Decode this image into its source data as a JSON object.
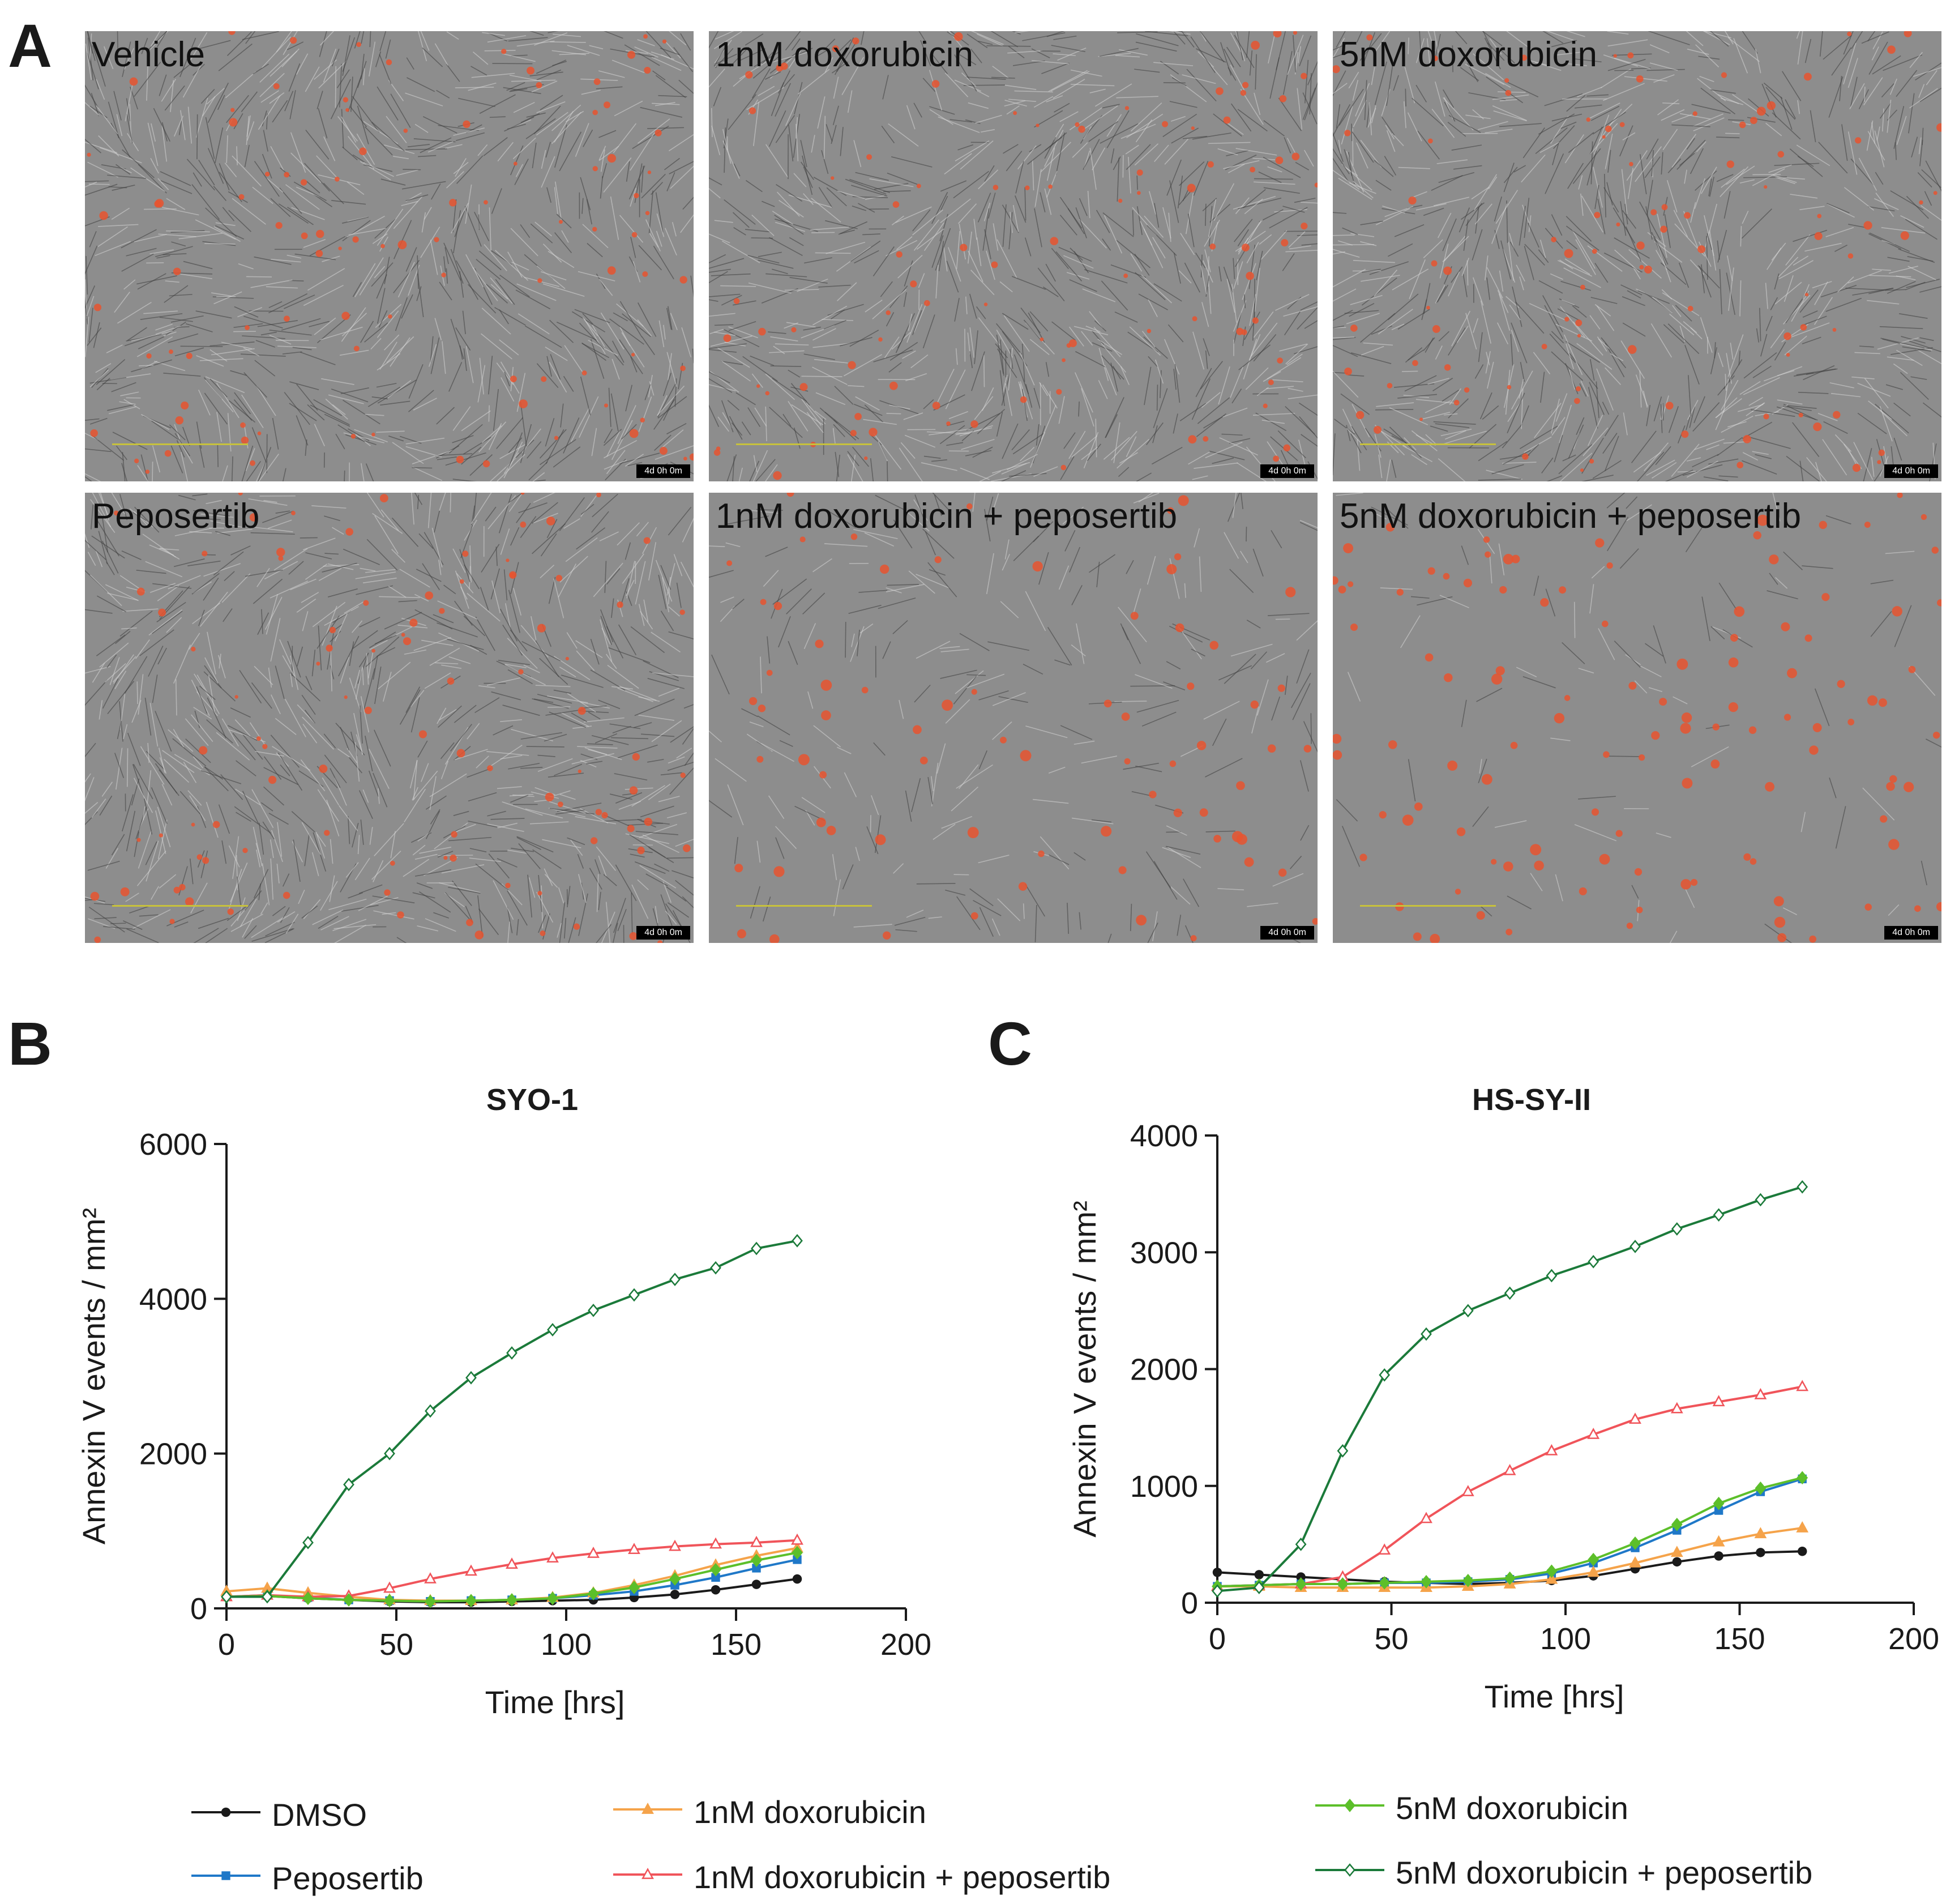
{
  "panel_letters": {
    "a": "A",
    "b": "B",
    "c": "C"
  },
  "micrographs": [
    {
      "label": "Vehicle",
      "timestamp": "4d 0h 0m",
      "density": "dense"
    },
    {
      "label": "1nM doxorubicin",
      "timestamp": "4d 0h 0m",
      "density": "dense"
    },
    {
      "label": "5nM doxorubicin",
      "timestamp": "4d 0h 0m",
      "density": "dense"
    },
    {
      "label": "Peposertib",
      "timestamp": "4d 0h 0m",
      "density": "dense"
    },
    {
      "label": "1nM doxorubicin + peposertib",
      "timestamp": "4d 0h 0m",
      "density": "sparse"
    },
    {
      "label": "5nM doxorubicin + peposertib",
      "timestamp": "4d 0h 0m",
      "density": "very-sparse"
    }
  ],
  "colors": {
    "DMSO": "#1a1a1a",
    "Peposertib": "#1f78c8",
    "1nM doxorubicin": "#f5a34a",
    "1nM doxorubicin + peposertib": "#f0545a",
    "5nM doxorubicin": "#5cbf2a",
    "5nM doxorubicin + peposertib": "#1b7a3a"
  },
  "legend": [
    {
      "name": "DMSO",
      "marker": "circle"
    },
    {
      "name": "Peposertib",
      "marker": "square"
    },
    {
      "name": "1nM doxorubicin",
      "marker": "triangle"
    },
    {
      "name": "1nM doxorubicin + peposertib",
      "marker": "triangle-open"
    },
    {
      "name": "5nM doxorubicin",
      "marker": "diamond"
    },
    {
      "name": "5nM doxorubicin + peposertib",
      "marker": "diamond-open"
    }
  ],
  "chart_data": [
    {
      "type": "line",
      "title": "SYO-1",
      "xlabel": "Time [hrs]",
      "ylabel": "Annexin V events / mm²",
      "xlim": [
        0,
        200
      ],
      "ylim": [
        0,
        6000
      ],
      "xticks": [
        0,
        50,
        100,
        150,
        200
      ],
      "yticks": [
        0,
        2000,
        4000,
        6000
      ],
      "x": [
        0,
        12,
        24,
        36,
        48,
        60,
        72,
        84,
        96,
        108,
        120,
        132,
        144,
        156,
        168
      ],
      "series": [
        {
          "name": "DMSO",
          "values": [
            150,
            160,
            130,
            110,
            90,
            80,
            80,
            90,
            100,
            110,
            140,
            180,
            240,
            310,
            380
          ]
        },
        {
          "name": "Peposertib",
          "values": [
            150,
            170,
            140,
            110,
            100,
            90,
            100,
            110,
            130,
            170,
            220,
            300,
            400,
            520,
            630
          ]
        },
        {
          "name": "1nM doxorubicin",
          "values": [
            220,
            260,
            200,
            150,
            110,
            100,
            100,
            110,
            140,
            200,
            300,
            420,
            560,
            680,
            780
          ]
        },
        {
          "name": "1nM doxorubicin + peposertib",
          "values": [
            150,
            170,
            150,
            160,
            260,
            380,
            480,
            570,
            650,
            710,
            760,
            800,
            830,
            850,
            880
          ]
        },
        {
          "name": "5nM doxorubicin",
          "values": [
            150,
            160,
            130,
            110,
            100,
            90,
            100,
            110,
            130,
            190,
            270,
            380,
            500,
            620,
            720
          ]
        },
        {
          "name": "5nM doxorubicin + peposertib",
          "values": [
            150,
            150,
            850,
            1600,
            2000,
            2550,
            2980,
            3300,
            3600,
            3850,
            4050,
            4250,
            4400,
            4650,
            4750
          ]
        }
      ]
    },
    {
      "type": "line",
      "title": "HS-SY-II",
      "xlabel": "Time [hrs]",
      "ylabel": "Annexin V events / mm²",
      "xlim": [
        0,
        200
      ],
      "ylim": [
        0,
        4000
      ],
      "xticks": [
        0,
        50,
        100,
        150,
        200
      ],
      "yticks": [
        0,
        1000,
        2000,
        3000,
        4000
      ],
      "x": [
        0,
        12,
        24,
        36,
        48,
        60,
        72,
        84,
        96,
        108,
        120,
        132,
        144,
        156,
        168
      ],
      "series": [
        {
          "name": "DMSO",
          "values": [
            260,
            240,
            220,
            200,
            180,
            170,
            160,
            170,
            190,
            230,
            290,
            350,
            400,
            430,
            440
          ]
        },
        {
          "name": "Peposertib",
          "values": [
            140,
            150,
            160,
            160,
            170,
            170,
            180,
            200,
            250,
            340,
            470,
            620,
            790,
            950,
            1060
          ]
        },
        {
          "name": "1nM doxorubicin",
          "values": [
            140,
            140,
            130,
            130,
            130,
            130,
            140,
            160,
            200,
            260,
            340,
            430,
            520,
            590,
            640
          ]
        },
        {
          "name": "1nM doxorubicin + peposertib",
          "values": [
            140,
            150,
            160,
            220,
            450,
            720,
            950,
            1130,
            1300,
            1440,
            1570,
            1660,
            1720,
            1780,
            1850
          ]
        },
        {
          "name": "5nM doxorubicin",
          "values": [
            140,
            150,
            160,
            160,
            170,
            180,
            190,
            210,
            270,
            370,
            510,
            670,
            850,
            980,
            1070
          ]
        },
        {
          "name": "5nM doxorubicin + peposertib",
          "values": [
            100,
            130,
            500,
            1300,
            1950,
            2300,
            2500,
            2650,
            2800,
            2920,
            3050,
            3200,
            3320,
            3450,
            3560
          ]
        }
      ]
    }
  ]
}
